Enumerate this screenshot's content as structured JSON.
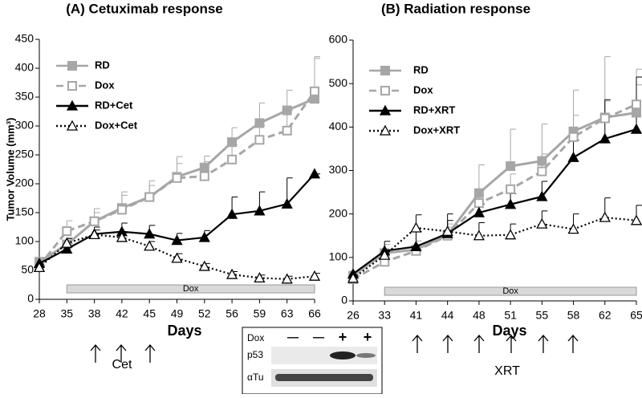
{
  "chart_data": [
    {
      "type": "line",
      "title": "(A) Cetuximab response",
      "x_label": "Days",
      "y_label": "Tumor Volume (mm³)",
      "categories": [
        "28",
        "35",
        "38",
        "42",
        "45",
        "49",
        "52",
        "56",
        "59",
        "63",
        "66"
      ],
      "ylim": [
        0,
        450
      ],
      "yticks": [
        0,
        50,
        100,
        150,
        200,
        250,
        300,
        350,
        400,
        450
      ],
      "band_label": "Dox",
      "treatment_label": "Cet",
      "series": [
        {
          "name": "RD",
          "color": "#a6a6a6",
          "dash": "solid",
          "marker": "square",
          "values": [
            65,
            95,
            135,
            158,
            177,
            212,
            228,
            272,
            305,
            327,
            347
          ],
          "errors": [
            5,
            12,
            22,
            28,
            28,
            35,
            20,
            25,
            35,
            35,
            70
          ]
        },
        {
          "name": "Dox",
          "color": "#a6a6a6",
          "dash": "dashed",
          "marker": "square-open",
          "values": [
            58,
            118,
            135,
            155,
            177,
            210,
            213,
            242,
            276,
            292,
            360
          ],
          "errors": [
            5,
            18,
            15,
            25,
            20,
            25,
            25,
            25,
            25,
            35,
            60
          ]
        },
        {
          "name": "RD+Cet",
          "color": "#000000",
          "dash": "solid",
          "marker": "triangle",
          "values": [
            62,
            87,
            113,
            117,
            113,
            102,
            107,
            147,
            153,
            165,
            217
          ],
          "errors": [
            5,
            10,
            12,
            15,
            15,
            12,
            12,
            30,
            33,
            45,
            0
          ]
        },
        {
          "name": "Dox+Cet",
          "color": "#000000",
          "dash": "dotted",
          "marker": "triangle-open",
          "values": [
            55,
            97,
            112,
            107,
            92,
            71,
            57,
            43,
            37,
            35,
            40
          ],
          "errors": [
            3,
            8,
            8,
            8,
            8,
            8,
            5,
            5,
            5,
            5,
            5
          ]
        }
      ]
    },
    {
      "type": "line",
      "title": "(B) Radiation response",
      "x_label": "Days",
      "categories": [
        "26",
        "33",
        "41",
        "44",
        "48",
        "51",
        "55",
        "58",
        "62",
        "65"
      ],
      "ylim": [
        0,
        600
      ],
      "yticks": [
        0,
        100,
        200,
        300,
        400,
        500,
        600
      ],
      "band_label": "Dox",
      "treatment_label": "XRT",
      "series": [
        {
          "name": "RD",
          "color": "#a6a6a6",
          "dash": "solid",
          "marker": "square",
          "values": [
            58,
            110,
            118,
            152,
            248,
            310,
            322,
            390,
            422,
            433
          ],
          "errors": [
            5,
            20,
            20,
            25,
            65,
            85,
            85,
            95,
            140,
            100
          ]
        },
        {
          "name": "Dox",
          "color": "#a6a6a6",
          "dash": "dashed",
          "marker": "square-open",
          "values": [
            50,
            90,
            115,
            150,
            225,
            257,
            298,
            377,
            420,
            452
          ],
          "errors": [
            5,
            10,
            15,
            20,
            30,
            35,
            40,
            50,
            40,
            45
          ]
        },
        {
          "name": "RD+XRT",
          "color": "#000000",
          "dash": "solid",
          "marker": "triangle",
          "values": [
            62,
            115,
            125,
            155,
            203,
            222,
            240,
            330,
            373,
            395
          ],
          "errors": [
            5,
            22,
            35,
            30,
            20,
            25,
            35,
            40,
            90,
            120
          ]
        },
        {
          "name": "Dox+XRT",
          "color": "#000000",
          "dash": "dotted",
          "marker": "triangle-open",
          "values": [
            52,
            105,
            168,
            160,
            150,
            152,
            177,
            165,
            192,
            185
          ],
          "errors": [
            3,
            10,
            30,
            40,
            30,
            25,
            30,
            35,
            45,
            35
          ]
        }
      ]
    }
  ],
  "inset": {
    "row_labels": [
      "Dox",
      "p53",
      "αTu"
    ],
    "dox_status": [
      "—",
      "—",
      "+",
      "+"
    ]
  }
}
